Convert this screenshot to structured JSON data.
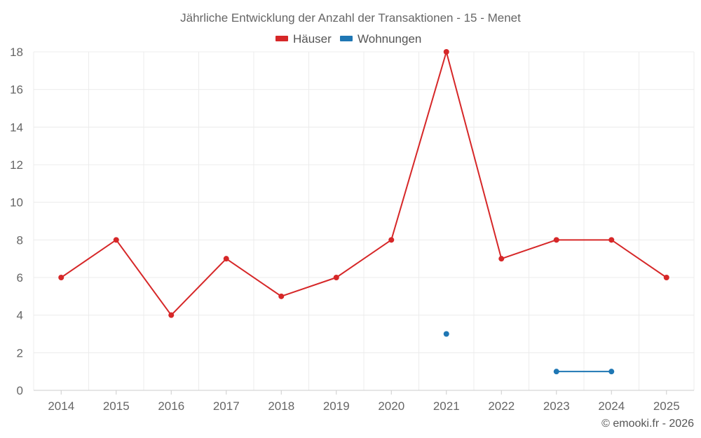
{
  "chart_data": {
    "type": "line",
    "title": "Jährliche Entwicklung der Anzahl der Transaktionen - 15 - Menet",
    "categories": [
      "2014",
      "2015",
      "2016",
      "2017",
      "2018",
      "2019",
      "2020",
      "2021",
      "2022",
      "2023",
      "2024",
      "2025"
    ],
    "series": [
      {
        "name": "Häuser",
        "color": "#d62728",
        "values": [
          6,
          8,
          4,
          7,
          5,
          6,
          8,
          18,
          7,
          8,
          8,
          6
        ]
      },
      {
        "name": "Wohnungen",
        "color": "#1f77b4",
        "values": [
          null,
          null,
          null,
          null,
          null,
          null,
          null,
          3,
          null,
          1,
          1,
          null
        ]
      }
    ],
    "ylim": [
      0,
      18
    ],
    "yticks": [
      0,
      2,
      4,
      6,
      8,
      10,
      12,
      14,
      16,
      18
    ],
    "xlabel": "",
    "ylabel": "",
    "grid": true,
    "legend": "top-center"
  },
  "credit": "© emooki.fr - 2026"
}
